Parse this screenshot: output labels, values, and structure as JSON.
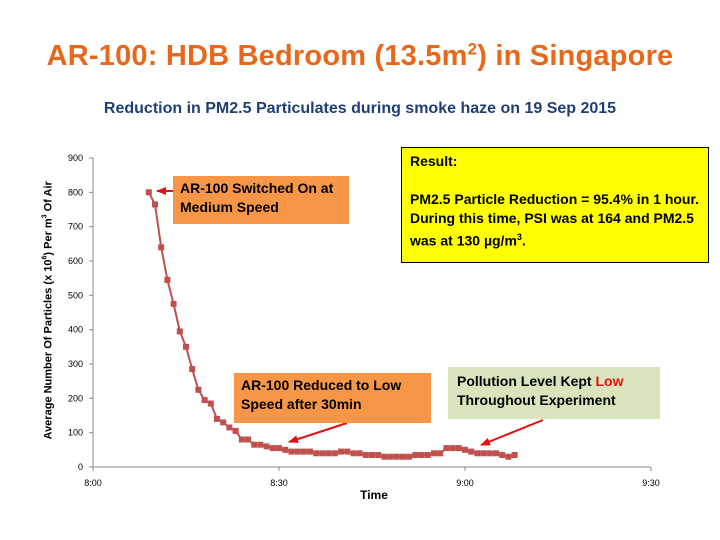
{
  "title": {
    "main": "AR-100: HDB Bedroom (13.5m",
    "sup": "2",
    "end": ") in Singapore"
  },
  "subtitle": "Reduction in PM2.5 Particulates during smoke haze on 19 Sep 2015",
  "annotations": {
    "switched_on": "AR-100 Switched On at Medium Speed",
    "reduced": "AR-100 Reduced to Low Speed after 30min",
    "kept_low_prefix": "Pollution Level Kept ",
    "kept_low_highlight": "Low",
    "kept_low_suffix": "Throughout Experiment"
  },
  "result_box": {
    "heading": "Result:",
    "line1": "PM2.5 Particle Reduction =  95.4% in 1 hour. During this time, PSI was at 164 and PM2.5 was at 130 µg/m",
    "line1_sup": "3",
    "line1_end": "."
  },
  "colors": {
    "series": "#c0504d",
    "title": "#e8671b",
    "subtitle": "#1f3f74",
    "arrow": "#e3110f"
  },
  "chart_data": {
    "type": "line",
    "title": "AR-100: HDB Bedroom (13.5m2) in Singapore",
    "subtitle": "Reduction in PM2.5 Particulates during smoke haze on 19 Sep 2015",
    "xlabel": "Time",
    "ylabel_main": "Average Number Of Particles (x 10",
    "ylabel_sup1": "6",
    "ylabel_mid": ")  Per m",
    "ylabel_sup2": "3",
    "ylabel_end": " Of Air",
    "x_ticks": [
      "8:00",
      "8:30",
      "9:00",
      "9:30"
    ],
    "y_ticks": [
      0,
      100,
      200,
      300,
      400,
      500,
      600,
      700,
      800,
      900
    ],
    "xlim_minutes_after_8": [
      0,
      90
    ],
    "ylim": [
      0,
      900
    ],
    "grid": false,
    "legend": "none",
    "series": [
      {
        "x": [
          "8:09",
          "8:10",
          "8:11",
          "8:12",
          "8:13",
          "8:14",
          "8:15",
          "8:16",
          "8:17",
          "8:18",
          "8:19",
          "8:20",
          "8:21",
          "8:22",
          "8:23",
          "8:24",
          "8:25",
          "8:26",
          "8:27",
          "8:28",
          "8:29",
          "8:30",
          "8:31",
          "8:32",
          "8:33",
          "8:34",
          "8:35",
          "8:36",
          "8:37",
          "8:38",
          "8:39",
          "8:40",
          "8:41",
          "8:42",
          "8:43",
          "8:44",
          "8:45",
          "8:46",
          "8:47",
          "8:48",
          "8:49",
          "8:50",
          "8:51",
          "8:52",
          "8:53",
          "8:54",
          "8:55",
          "8:56",
          "8:57",
          "8:58",
          "8:59",
          "9:00",
          "9:01",
          "9:02",
          "9:03",
          "9:04",
          "9:05",
          "9:06",
          "9:07",
          "9:08"
        ],
        "y": [
          800,
          765,
          640,
          545,
          475,
          395,
          350,
          285,
          225,
          195,
          185,
          140,
          130,
          115,
          105,
          80,
          80,
          65,
          65,
          60,
          55,
          55,
          50,
          45,
          45,
          45,
          45,
          40,
          40,
          40,
          40,
          45,
          45,
          40,
          40,
          35,
          35,
          35,
          30,
          30,
          30,
          30,
          30,
          35,
          35,
          35,
          40,
          40,
          55,
          55,
          55,
          50,
          45,
          40,
          40,
          40,
          40,
          35,
          30,
          35
        ]
      }
    ]
  }
}
